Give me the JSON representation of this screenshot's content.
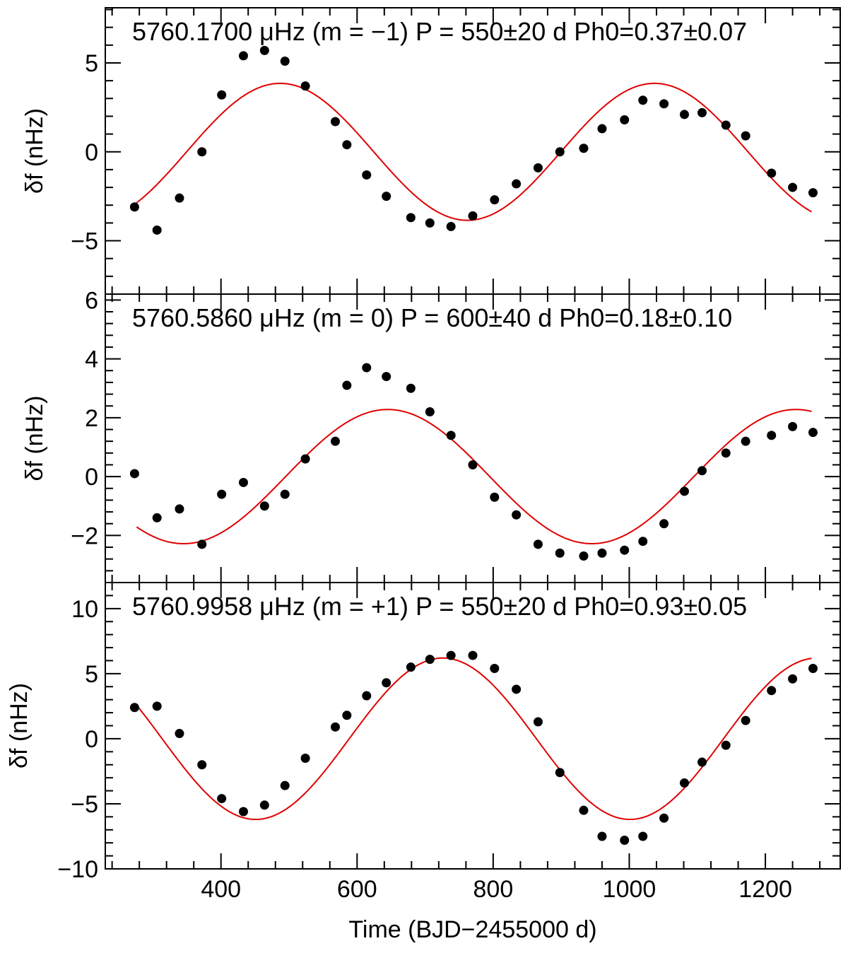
{
  "colors": {
    "data_points": "#000000",
    "fit_curve": "#e00000",
    "axes": "#000000",
    "background": "#ffffff"
  },
  "chart_data": [
    {
      "type": "scatter",
      "title": "5760.1700 μHz (m = −1) P = 550±20 d  Ph0=0.37±0.07",
      "ylabel": "δf (nHz)",
      "xlabel": "",
      "xlim": [
        230,
        1310
      ],
      "ylim": [
        -8,
        8.1
      ],
      "yticks": [
        -5,
        0,
        5
      ],
      "ytick_labels": [
        "−5",
        "0",
        "5"
      ],
      "xticks": [
        400,
        600,
        800,
        1000,
        1200
      ],
      "xtick_labels": [],
      "points": {
        "x": [
          273,
          306,
          339,
          372,
          401,
          433,
          464,
          494,
          524,
          568,
          585,
          614,
          643,
          679,
          707,
          738,
          770,
          802,
          834,
          866,
          898,
          933,
          960,
          993,
          1020,
          1051,
          1081,
          1107,
          1142,
          1171,
          1209,
          1240,
          1270
        ],
        "y": [
          -3.1,
          -4.4,
          -2.6,
          0.0,
          3.2,
          5.4,
          5.7,
          5.1,
          3.7,
          1.7,
          0.4,
          -1.3,
          -2.5,
          -3.7,
          -4.0,
          -4.2,
          -3.6,
          -2.7,
          -1.8,
          -0.9,
          0.0,
          0.2,
          1.3,
          1.8,
          2.9,
          2.7,
          2.1,
          2.2,
          1.5,
          0.9,
          -1.2,
          -2.0,
          -2.3
        ]
      },
      "fit": {
        "amplitude": 3.85,
        "period": 550,
        "offset": 0.0,
        "peak_x": 487,
        "x_range": [
          276,
          1268
        ]
      }
    },
    {
      "type": "scatter",
      "title": "5760.5860 μHz (m = 0) P = 600±40 d  Ph0=0.18±0.10",
      "ylabel": "δf (nHz)",
      "xlabel": "",
      "xlim": [
        230,
        1310
      ],
      "ylim": [
        -3.6,
        6.2
      ],
      "yticks": [
        -2,
        0,
        2,
        4,
        6
      ],
      "ytick_labels": [
        "−2",
        "0",
        "2",
        "4",
        "6"
      ],
      "xticks": [
        400,
        600,
        800,
        1000,
        1200
      ],
      "xtick_labels": [],
      "points": {
        "x": [
          273,
          306,
          339,
          372,
          401,
          433,
          464,
          494,
          524,
          568,
          585,
          614,
          643,
          679,
          707,
          738,
          770,
          802,
          834,
          866,
          898,
          933,
          960,
          993,
          1020,
          1051,
          1081,
          1107,
          1142,
          1171,
          1209,
          1240,
          1270
        ],
        "y": [
          0.1,
          -1.4,
          -1.1,
          -2.3,
          -0.6,
          -0.2,
          -1.0,
          -0.6,
          0.6,
          1.2,
          3.1,
          3.7,
          3.4,
          3.0,
          2.2,
          1.4,
          0.4,
          -0.7,
          -1.3,
          -2.3,
          -2.6,
          -2.7,
          -2.6,
          -2.5,
          -2.2,
          -1.6,
          -0.5,
          0.2,
          0.8,
          1.2,
          1.4,
          1.7,
          1.5
        ]
      },
      "fit": {
        "amplitude": 2.28,
        "period": 600,
        "offset": 0.0,
        "peak_x": 645,
        "x_range": [
          276,
          1268
        ]
      }
    },
    {
      "type": "scatter",
      "title": "5760.9958 μHz (m = +1) P = 550±20 d Ph0=0.93±0.05",
      "ylabel": "δf (nHz)",
      "xlabel": "Time (BJD−2455000 d)",
      "xlim": [
        230,
        1310
      ],
      "ylim": [
        -10,
        12
      ],
      "yticks": [
        -10,
        -5,
        0,
        5,
        10
      ],
      "ytick_labels": [
        "−10",
        "−5",
        "0",
        "5",
        "10"
      ],
      "xticks": [
        400,
        600,
        800,
        1000,
        1200
      ],
      "xtick_labels": [
        "400",
        "600",
        "800",
        "1000",
        "1200"
      ],
      "points": {
        "x": [
          273,
          306,
          339,
          372,
          401,
          433,
          464,
          494,
          524,
          568,
          585,
          614,
          643,
          679,
          707,
          738,
          770,
          802,
          834,
          866,
          898,
          933,
          960,
          993,
          1020,
          1051,
          1081,
          1107,
          1142,
          1171,
          1209,
          1240,
          1270
        ],
        "y": [
          2.4,
          2.5,
          0.4,
          -2.0,
          -4.6,
          -5.6,
          -5.1,
          -3.6,
          -1.5,
          0.9,
          1.8,
          3.3,
          4.3,
          5.5,
          6.1,
          6.4,
          6.4,
          5.4,
          3.8,
          1.3,
          -2.6,
          -5.5,
          -7.5,
          -7.8,
          -7.5,
          -6.1,
          -3.4,
          -1.8,
          -0.5,
          1.4,
          3.7,
          4.6,
          5.4
        ]
      },
      "fit": {
        "amplitude": 6.2,
        "period": 550,
        "offset": 0.0,
        "peak_x": 726,
        "x_range": [
          276,
          1268
        ]
      }
    }
  ]
}
